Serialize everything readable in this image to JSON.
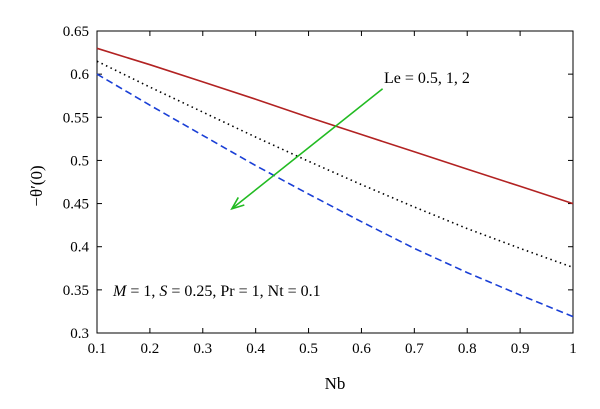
{
  "chart_data": {
    "type": "line",
    "title": "",
    "xlabel": "Nb",
    "ylabel": "−θ′(0)",
    "xlim": [
      0.1,
      1
    ],
    "ylim": [
      0.3,
      0.65
    ],
    "x_ticks": [
      "0.1",
      "0.2",
      "0.3",
      "0.4",
      "0.5",
      "0.6",
      "0.7",
      "0.8",
      "0.9",
      "1"
    ],
    "y_ticks": [
      "0.3",
      "0.35",
      "0.4",
      "0.45",
      "0.5",
      "0.55",
      "0.6",
      "0.65"
    ],
    "grid": false,
    "legend": "none",
    "x": [
      0.1,
      0.2,
      0.3,
      0.4,
      0.5,
      0.6,
      0.7,
      0.8,
      0.9,
      1.0
    ],
    "series": [
      {
        "values": [
          0.63,
          0.611,
          0.591,
          0.571,
          0.55,
          0.53,
          0.51,
          0.49,
          0.47,
          0.45
        ],
        "color": "#b22222",
        "style": "solid"
      },
      {
        "values": [
          0.615,
          0.585,
          0.556,
          0.527,
          0.499,
          0.472,
          0.446,
          0.421,
          0.398,
          0.376
        ],
        "color": "#000000",
        "style": "dotted"
      },
      {
        "values": [
          0.6,
          0.564,
          0.529,
          0.494,
          0.461,
          0.429,
          0.398,
          0.37,
          0.344,
          0.319
        ],
        "color": "#1a3fd6",
        "style": "dashed"
      }
    ],
    "annotations": {
      "arrow_label": "Le = 0.5, 1, 2",
      "arrow_color": "#22bb22",
      "arrow_start": [
        0.64,
        0.583
      ],
      "arrow_end": [
        0.355,
        0.444
      ],
      "param_prefix_M": "M",
      "param_value_M": " = 1, ",
      "param_prefix_S": "S",
      "param_rest": " = 0.25, Pr = 1, Nt = 0.1"
    }
  }
}
